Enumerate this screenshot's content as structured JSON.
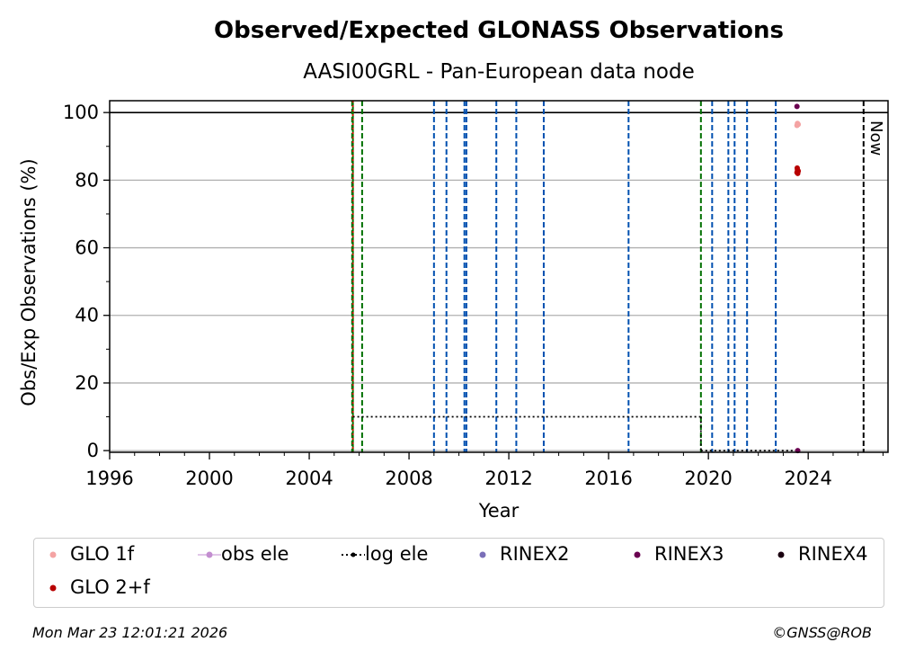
{
  "chart_data": {
    "type": "scatter",
    "title": "Observed/Expected GLONASS Observations",
    "subtitle": "AASI00GRL - Pan-European data node",
    "xlabel": "Year",
    "ylabel": "Obs/Exp Observations (%)",
    "xlim": [
      1996,
      2027.2
    ],
    "ylim": [
      -0.5,
      103.5
    ],
    "x_ticks": [
      1996,
      2000,
      2004,
      2008,
      2012,
      2016,
      2020,
      2024
    ],
    "x_tick_labels": [
      "1996",
      "2000",
      "2004",
      "2008",
      "2012",
      "2016",
      "2020",
      "2024"
    ],
    "y_ticks": [
      0,
      20,
      40,
      60,
      80,
      100
    ],
    "y_tick_labels": [
      "0",
      "20",
      "40",
      "60",
      "80",
      "100"
    ],
    "grid": "horizontal",
    "reference_line_y": 100,
    "now_label": "Now",
    "now_x": 2026.22,
    "vlines_green": [
      2005.72,
      2006.12,
      2019.7
    ],
    "vlines_blue": [
      2009.0,
      2009.5,
      2010.22,
      2010.3,
      2011.5,
      2012.3,
      2013.4,
      2016.8,
      2020.15,
      2020.8,
      2021.05,
      2021.55,
      2022.7
    ],
    "vline_red": 2005.75,
    "log_ele_segments": [
      {
        "x": [
          2005.75,
          2019.7
        ],
        "y": [
          10,
          10
        ]
      },
      {
        "x": [
          2019.7,
          2019.7
        ],
        "y": [
          10,
          0
        ]
      },
      {
        "x": [
          2019.7,
          2023.5
        ],
        "y": [
          0,
          0
        ]
      }
    ],
    "series": [
      {
        "name": "GLO 1f",
        "color": "#f4a3a3",
        "x": [
          2023.55,
          2023.57,
          2023.6
        ],
        "y": [
          96.2,
          96.8,
          96.5
        ]
      },
      {
        "name": "obs ele",
        "color": "#c38ed0",
        "x": [],
        "y": []
      },
      {
        "name": "log ele",
        "color": "#000000",
        "x": [],
        "y": []
      },
      {
        "name": "RINEX2",
        "color": "#7a6fb8",
        "x": [],
        "y": []
      },
      {
        "name": "RINEX3",
        "color": "#6a0050",
        "x": [
          2023.55,
          2023.58
        ],
        "y": [
          101.8,
          0
        ]
      },
      {
        "name": "RINEX4",
        "color": "#1a0010",
        "x": [],
        "y": []
      },
      {
        "name": "GLO 2+f",
        "color": "#b80000",
        "x": [
          2023.55,
          2023.57,
          2023.6,
          2023.56,
          2023.58
        ],
        "y": [
          82.3,
          83.1,
          82.7,
          83.6,
          82.0
        ]
      }
    ],
    "legend_position": "bottom"
  },
  "legend": [
    {
      "label": "GLO 1f",
      "color": "#f4a3a3",
      "style": "dot"
    },
    {
      "label": "obs ele",
      "color": "#c38ed0",
      "style": "line-dot"
    },
    {
      "label": "log ele",
      "color": "#000000",
      "style": "dotted-line"
    },
    {
      "label": "RINEX2",
      "color": "#7a6fb8",
      "style": "dot"
    },
    {
      "label": "RINEX3",
      "color": "#6a0050",
      "style": "dot"
    },
    {
      "label": "RINEX4",
      "color": "#1a0010",
      "style": "dot"
    },
    {
      "label": "GLO 2+f",
      "color": "#b80000",
      "style": "dot"
    }
  ],
  "footer": {
    "timestamp": "Mon Mar 23 12:01:21 2026",
    "copyright": "©GNSS@ROB"
  },
  "colors": {
    "green_line": "#007000",
    "blue_line": "#0050b0",
    "red_line": "#ff0000",
    "grid": "#b0b0b0"
  }
}
